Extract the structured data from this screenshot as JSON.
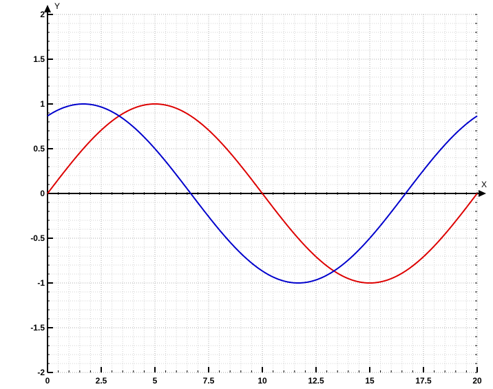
{
  "chart_data": {
    "type": "line",
    "title": "",
    "xlabel": "X",
    "ylabel": "Y",
    "xlim": [
      0,
      20
    ],
    "ylim": [
      -2,
      2
    ],
    "grid": true,
    "x_major_ticks": [
      0,
      2.5,
      5,
      7.5,
      10,
      12.5,
      15,
      17.5,
      20
    ],
    "x_tick_labels": [
      "0",
      "2.5",
      "5",
      "7.5",
      "10",
      "12.5",
      "15",
      "17.5",
      "20"
    ],
    "y_major_ticks": [
      -2,
      -1.5,
      -1,
      -0.5,
      0,
      0.5,
      1,
      1.5,
      2
    ],
    "y_tick_labels": [
      "-2",
      "-1.5",
      "-1",
      "-0.5",
      "0",
      "0.5",
      "1",
      "1.5",
      "2"
    ],
    "series": [
      {
        "color": "#dd0000",
        "function": "sin(pi*x/10)",
        "x": [
          0,
          2.5,
          5,
          7.5,
          10,
          12.5,
          15,
          17.5,
          20
        ],
        "y": [
          0,
          0.707,
          1,
          0.707,
          0,
          -0.707,
          -1,
          -0.707,
          0
        ]
      },
      {
        "color": "#0000cc",
        "function": "sin(pi*x/10 + pi/3)",
        "x": [
          0,
          1.667,
          2.5,
          5,
          6.667,
          7.5,
          10,
          11.667,
          12.5,
          15,
          16.667,
          17.5,
          20
        ],
        "y": [
          0.866,
          1,
          0.966,
          0.5,
          0,
          -0.259,
          -0.866,
          -1,
          -0.966,
          -0.5,
          0,
          0.259,
          0.866
        ]
      }
    ]
  }
}
